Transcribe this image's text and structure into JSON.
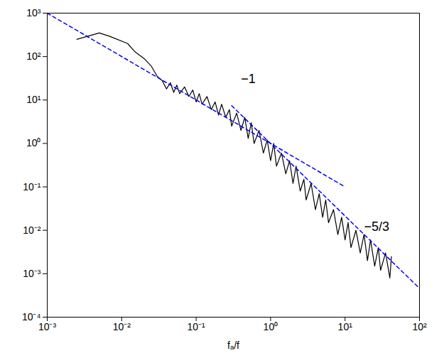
{
  "chart_data": {
    "type": "line",
    "log": true,
    "grid": false,
    "x_label": "fₐ/f",
    "xlim": [
      0.001,
      100
    ],
    "xticks": [
      {
        "value": 0.001,
        "label": "10⁻³"
      },
      {
        "value": 0.01,
        "label": "10⁻²"
      },
      {
        "value": 0.1,
        "label": "10⁻¹"
      },
      {
        "value": 1,
        "label": "10⁰"
      },
      {
        "value": 10,
        "label": "10¹"
      },
      {
        "value": 100,
        "label": "10²"
      }
    ],
    "ylim": [
      0.0001,
      1000
    ],
    "yticks": [
      {
        "value": 0.0001,
        "label": "10⁻⁴"
      },
      {
        "value": 0.001,
        "label": "10⁻³"
      },
      {
        "value": 0.01,
        "label": "10⁻²"
      },
      {
        "value": 0.1,
        "label": "10⁻¹"
      },
      {
        "value": 1,
        "label": "10⁰"
      },
      {
        "value": 10,
        "label": "10¹"
      },
      {
        "value": 100,
        "label": "10²"
      },
      {
        "value": 1000,
        "label": "10³"
      }
    ],
    "series": [
      {
        "color": "#000000",
        "line_style": "solid",
        "x": [
          0.0025,
          0.005,
          0.007,
          0.012,
          0.015,
          0.02,
          0.025,
          0.03,
          0.035,
          0.04,
          0.045,
          0.05,
          0.055,
          0.06,
          0.07,
          0.08,
          0.09,
          0.1,
          0.11,
          0.12,
          0.14,
          0.16,
          0.18,
          0.2,
          0.22,
          0.25,
          0.28,
          0.3,
          0.35,
          0.4,
          0.45,
          0.5,
          0.55,
          0.6,
          0.7,
          0.8,
          0.9,
          1,
          1.1,
          1.2,
          1.4,
          1.6,
          1.8,
          2,
          2.2,
          2.5,
          2.8,
          3,
          3.5,
          4,
          4.5,
          5,
          5.5,
          6,
          7,
          8,
          9,
          10,
          11,
          12,
          14,
          16,
          18,
          20,
          22,
          25,
          28,
          30,
          35,
          40,
          42
        ],
        "values": [
          250,
          350,
          290,
          200,
          130,
          90,
          60,
          35,
          28,
          18,
          25,
          15,
          22,
          14,
          20,
          12,
          17,
          9,
          14,
          8,
          12,
          6,
          9,
          4.5,
          8,
          4,
          6,
          2.5,
          5,
          2,
          4,
          1.3,
          3,
          1,
          2,
          0.6,
          1.2,
          0.4,
          1,
          0.3,
          0.6,
          0.2,
          0.4,
          0.12,
          0.3,
          0.08,
          0.15,
          0.05,
          0.12,
          0.03,
          0.07,
          0.02,
          0.05,
          0.015,
          0.03,
          0.008,
          0.02,
          0.006,
          0.015,
          0.004,
          0.01,
          0.003,
          0.008,
          0.002,
          0.006,
          0.0015,
          0.004,
          0.0012,
          0.003,
          0.0008,
          0.0025
        ]
      },
      {
        "color": "#0000ff",
        "line_style": "dashed",
        "x": [
          0.001,
          10
        ],
        "values": [
          1000,
          0.1
        ]
      },
      {
        "color": "#0000ff",
        "line_style": "dashed",
        "x": [
          0.3,
          100
        ],
        "values": [
          7.4,
          0.00046
        ]
      }
    ],
    "annotations": [
      {
        "text": "−1",
        "x": 0.4,
        "y": 30
      },
      {
        "text": "−5/3",
        "x": 18,
        "y": 0.012
      }
    ]
  }
}
